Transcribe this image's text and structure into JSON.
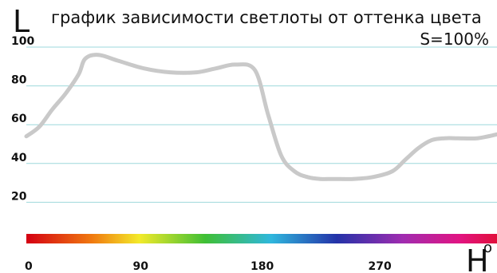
{
  "chart_data": {
    "type": "line",
    "title": "график зависимости светлоты от оттенка цвета",
    "subtitle": "S=100%",
    "ylabel": "L",
    "xlabel": "H",
    "xlabel_superscript": "o",
    "xlim": [
      0,
      360
    ],
    "ylim": [
      0,
      100
    ],
    "grid": true,
    "y_ticks": [
      100,
      80,
      60,
      40,
      20
    ],
    "x_ticks": [
      0,
      90,
      180,
      270
    ],
    "series": [
      {
        "x": [
          0,
          10,
          20,
          30,
          40,
          45,
          55,
          70,
          90,
          110,
          130,
          145,
          160,
          175,
          185,
          195,
          205,
          215,
          225,
          235,
          250,
          265,
          280,
          290,
          300,
          310,
          320,
          330,
          345,
          360
        ],
        "values": [
          54,
          59,
          68,
          76,
          86,
          94,
          96,
          93,
          89,
          87,
          87,
          89,
          91,
          88,
          65,
          44,
          36,
          33,
          32,
          32,
          32,
          33,
          36,
          42,
          48,
          52,
          53,
          53,
          53,
          55
        ]
      }
    ],
    "colors": {
      "line": "#c9c9c9",
      "grid": "#9ed8dc",
      "hue_gradient": [
        "#d40012",
        "#f07a10",
        "#f3ea2a",
        "#3fbf35",
        "#2fb7dd",
        "#2432a8",
        "#a02cb0",
        "#e11482",
        "#e10f3b"
      ]
    }
  }
}
